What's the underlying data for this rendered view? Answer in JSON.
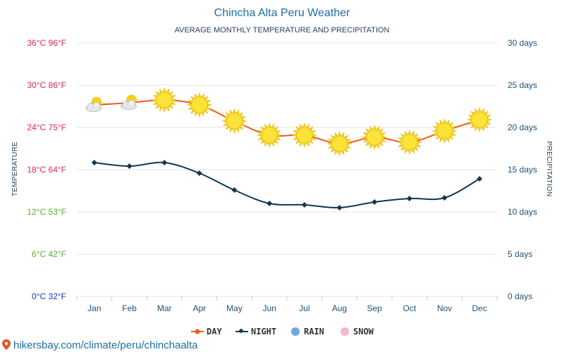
{
  "chart_data": {
    "type": "line",
    "title": "Chincha Alta Peru Weather",
    "subtitle": "AVERAGE MONTHLY TEMPERATURE AND PRECIPITATION",
    "ylabel_left": "TEMPERATURE",
    "ylabel_right": "PRECIPITATION",
    "categories": [
      "Jan",
      "Feb",
      "Mar",
      "Apr",
      "May",
      "Jun",
      "Jul",
      "Aug",
      "Sep",
      "Oct",
      "Nov",
      "Dec"
    ],
    "ylim_left": [
      0,
      36
    ],
    "ylim_right": [
      0,
      30
    ],
    "left_ticks": [
      {
        "value": 0,
        "label": "0°C 32°F",
        "color": "#1a33cc"
      },
      {
        "value": 6,
        "label": "6°C 42°F",
        "color": "#55b32a"
      },
      {
        "value": 12,
        "label": "12°C 53°F",
        "color": "#55b32a"
      },
      {
        "value": 18,
        "label": "18°C 64°F",
        "color": "#e0245e"
      },
      {
        "value": 24,
        "label": "24°C 75°F",
        "color": "#e0245e"
      },
      {
        "value": 30,
        "label": "30°C 86°F",
        "color": "#e0245e"
      },
      {
        "value": 36,
        "label": "36°C 96°F",
        "color": "#e0245e"
      }
    ],
    "right_ticks": [
      {
        "value": 0,
        "label": "0 days"
      },
      {
        "value": 5,
        "label": "5 days"
      },
      {
        "value": 10,
        "label": "10 days"
      },
      {
        "value": 15,
        "label": "15 days"
      },
      {
        "value": 20,
        "label": "20 days"
      },
      {
        "value": 25,
        "label": "25 days"
      },
      {
        "value": 30,
        "label": "30 days"
      }
    ],
    "series": [
      {
        "name": "DAY",
        "color": "#f05a1a",
        "values": [
          27.2,
          27.5,
          27.9,
          27.2,
          24.9,
          22.9,
          22.9,
          21.7,
          22.6,
          21.9,
          23.5,
          25.1
        ]
      },
      {
        "name": "NIGHT",
        "color": "#10384f",
        "values": [
          19.0,
          18.5,
          19.0,
          17.5,
          15.1,
          13.2,
          13.0,
          12.6,
          13.4,
          13.9,
          14.0,
          16.7
        ]
      }
    ],
    "weather_icons": [
      "partly-cloudy-icon",
      "partly-cloudy-icon",
      "sun-icon",
      "sun-icon",
      "sun-icon",
      "sun-icon",
      "sun-icon",
      "sun-icon",
      "sun-icon",
      "sun-icon",
      "sun-icon",
      "sun-icon"
    ],
    "legend": [
      {
        "label": "DAY",
        "color": "#f05a1a",
        "marker": "line-dot"
      },
      {
        "label": "NIGHT",
        "color": "#10384f",
        "marker": "line-diamond"
      },
      {
        "label": "RAIN",
        "color": "#6fa8dc",
        "marker": "circle"
      },
      {
        "label": "SNOW",
        "color": "#f6b7c6",
        "marker": "circle"
      }
    ],
    "legend_position": "bottom-center",
    "grid": true
  },
  "footer": {
    "text": "hikersbay.com/climate/peru/chinchaalta",
    "icon": "map-pin-icon",
    "color": "#e8542b"
  }
}
